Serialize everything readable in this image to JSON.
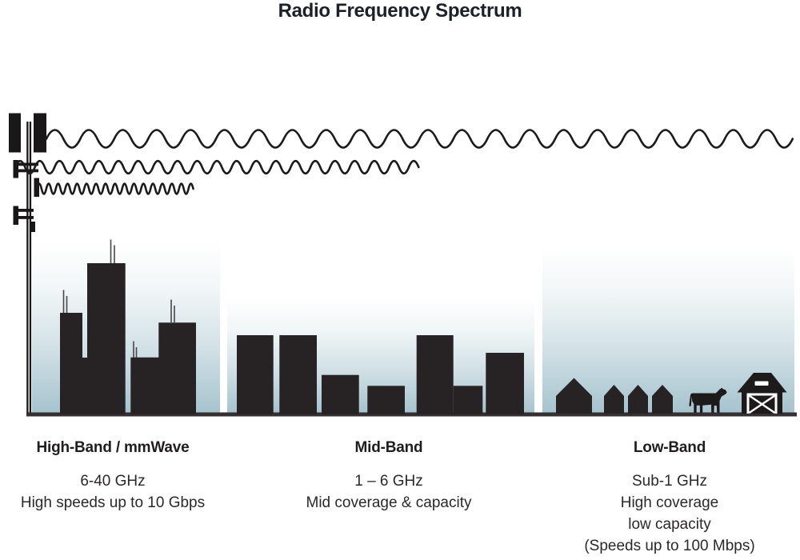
{
  "title": "Radio Frequency Spectrum",
  "bands": [
    {
      "id": "high",
      "name": "High-Band / mmWave",
      "specs": [
        "6-40 GHz",
        "High speeds up to 10 Gbps"
      ]
    },
    {
      "id": "mid",
      "name": "Mid-Band",
      "specs": [
        "1 – 6 GHz",
        "Mid coverage & capacity"
      ]
    },
    {
      "id": "low",
      "name": "Low-Band",
      "specs": [
        "Sub-1 GHz",
        "High coverage",
        "low capacity",
        "(Speeds up to 100 Mbps)"
      ]
    }
  ],
  "illustrations": {
    "tower": "cell-tower-icon",
    "waves": [
      "long-wavelength-wave-icon",
      "medium-wavelength-wave-icon",
      "short-wavelength-wave-icon"
    ],
    "high_band_scene": "city-skyscrapers-icon",
    "mid_band_scene": "midrise-buildings-icon",
    "low_band_scene": [
      "suburb-houses-icon",
      "cow-icon",
      "barn-icon"
    ]
  },
  "colors": {
    "ink": "#211d1e",
    "sky_top": "#ffffff",
    "sky_bottom": "#a6c3ce",
    "ground": "#343031",
    "title_text": "#1b2029",
    "body_text": "#2c2829"
  }
}
